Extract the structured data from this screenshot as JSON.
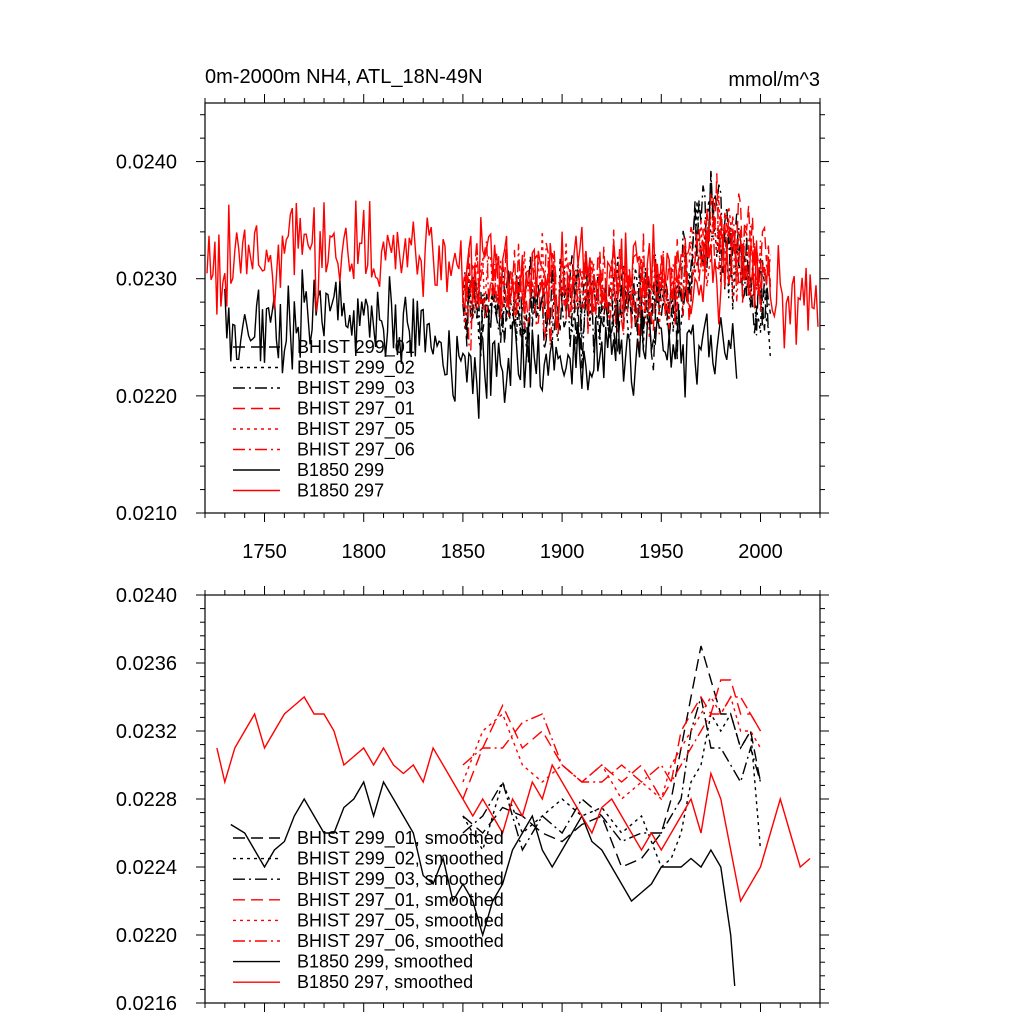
{
  "chart_data": [
    {
      "type": "line",
      "title": "0m-2000m NH4, ATL_18N-49N",
      "units": "mmol/m^3",
      "xlim": [
        1720,
        2030
      ],
      "ylim": [
        0.021,
        0.0245
      ],
      "x_ticks": [
        1750,
        1800,
        1850,
        1900,
        1950,
        2000
      ],
      "x_tick_labels": [
        "1750",
        "1800",
        "1850",
        "1900",
        "1950",
        "2000"
      ],
      "y_ticks": [
        0.021,
        0.022,
        0.023,
        0.024
      ],
      "y_tick_labels": [
        "0.0210",
        "0.0220",
        "0.0230",
        "0.0240"
      ],
      "legend_position": "bottom-left",
      "series": [
        {
          "name": "BHIST 299_01",
          "color": "#000000",
          "dash": "long",
          "x_start": 1850,
          "x_end": 2005,
          "mean": 0.02275,
          "amp": 0.0006,
          "trend": [
            [
              1850,
              0.0
            ],
            [
              1955,
              0.0
            ],
            [
              1975,
              0.0007
            ],
            [
              2005,
              0.0
            ]
          ]
        },
        {
          "name": "BHIST 299_02",
          "color": "#000000",
          "dash": "dot",
          "x_start": 1850,
          "x_end": 2005,
          "mean": 0.02275,
          "amp": 0.0006,
          "trend": [
            [
              1850,
              0.0
            ],
            [
              1955,
              0.0
            ],
            [
              1975,
              0.0006
            ],
            [
              2005,
              -0.0001
            ]
          ]
        },
        {
          "name": "BHIST 299_03",
          "color": "#000000",
          "dash": "dashdot",
          "x_start": 1850,
          "x_end": 2005,
          "mean": 0.02275,
          "amp": 0.0006,
          "trend": [
            [
              1850,
              0.0
            ],
            [
              1955,
              0.0
            ],
            [
              1975,
              0.0008
            ],
            [
              2005,
              0.0
            ]
          ]
        },
        {
          "name": "BHIST 297_01",
          "color": "#ff0000",
          "dash": "long",
          "x_start": 1850,
          "x_end": 2005,
          "mean": 0.0229,
          "amp": 0.0006,
          "trend": [
            [
              1850,
              0.0
            ],
            [
              1955,
              0.0
            ],
            [
              1978,
              0.0006
            ],
            [
              2005,
              0.0002
            ]
          ]
        },
        {
          "name": "BHIST 297_05",
          "color": "#ff0000",
          "dash": "dot",
          "x_start": 1850,
          "x_end": 2005,
          "mean": 0.0229,
          "amp": 0.0006,
          "trend": [
            [
              1850,
              0.0
            ],
            [
              1955,
              0.0
            ],
            [
              1978,
              0.0005
            ],
            [
              2005,
              0.0002
            ]
          ]
        },
        {
          "name": "BHIST 297_06",
          "color": "#ff0000",
          "dash": "dashdot",
          "x_start": 1850,
          "x_end": 2005,
          "mean": 0.0229,
          "amp": 0.0006,
          "trend": [
            [
              1850,
              0.0
            ],
            [
              1955,
              0.0
            ],
            [
              1978,
              0.0005
            ],
            [
              2005,
              0.0001
            ]
          ]
        },
        {
          "name": "B1850 299",
          "color": "#000000",
          "dash": "solid",
          "x_start": 1730,
          "x_end": 1988,
          "mean": 0.02255,
          "amp": 0.0006,
          "trend": [
            [
              1730,
              0.0
            ],
            [
              1790,
              0.0002
            ],
            [
              1860,
              -0.0003
            ],
            [
              1950,
              -0.0001
            ],
            [
              1988,
              -0.0002
            ]
          ]
        },
        {
          "name": "B1850 297",
          "color": "#ff0000",
          "dash": "solid",
          "x_start": 1721,
          "x_end": 2029,
          "mean": 0.023,
          "amp": 0.0006,
          "trend": [
            [
              1721,
              0.0001
            ],
            [
              1790,
              0.0003
            ],
            [
              1900,
              0.0
            ],
            [
              1980,
              0.0001
            ],
            [
              2029,
              -0.0002
            ]
          ]
        }
      ]
    },
    {
      "type": "line",
      "title": "",
      "xlim": [
        1720,
        2030
      ],
      "ylim": [
        0.0216,
        0.024
      ],
      "x_ticks": [
        1750,
        1800,
        1850,
        1900,
        1950,
        2000
      ],
      "y_ticks": [
        0.0216,
        0.022,
        0.0224,
        0.0228,
        0.0232,
        0.0236,
        0.024
      ],
      "y_tick_labels": [
        "0.0216",
        "0.0220",
        "0.0224",
        "0.0228",
        "0.0232",
        "0.0236",
        "0.0240"
      ],
      "legend_position": "bottom-left",
      "series": [
        {
          "name": "BHIST 299_01, smoothed",
          "color": "#000000",
          "dash": "long",
          "x": [
            1850,
            1860,
            1870,
            1880,
            1890,
            1900,
            1910,
            1920,
            1930,
            1940,
            1950,
            1955,
            1960,
            1965,
            1970,
            1975,
            1980,
            1985,
            1990,
            1995,
            2000
          ],
          "y": [
            0.0227,
            0.0226,
            0.02275,
            0.0227,
            0.0226,
            0.02255,
            0.02265,
            0.0227,
            0.0224,
            0.02245,
            0.0226,
            0.0228,
            0.0231,
            0.0234,
            0.0237,
            0.0235,
            0.0233,
            0.0233,
            0.0231,
            0.0232,
            0.0229
          ]
        },
        {
          "name": "BHIST 299_02, smoothed",
          "color": "#000000",
          "dash": "dot",
          "x": [
            1850,
            1860,
            1870,
            1880,
            1890,
            1900,
            1910,
            1920,
            1930,
            1940,
            1950,
            1955,
            1960,
            1965,
            1970,
            1975,
            1980,
            1985,
            1990,
            1995,
            2000
          ],
          "y": [
            0.0227,
            0.0225,
            0.0229,
            0.0226,
            0.0227,
            0.0228,
            0.0227,
            0.02275,
            0.0226,
            0.0227,
            0.0224,
            0.02245,
            0.0226,
            0.0229,
            0.023,
            0.0233,
            0.0232,
            0.0233,
            0.0231,
            0.0232,
            0.0225
          ]
        },
        {
          "name": "BHIST 299_03, smoothed",
          "color": "#000000",
          "dash": "dashdot",
          "x": [
            1850,
            1860,
            1870,
            1880,
            1890,
            1900,
            1910,
            1920,
            1930,
            1940,
            1950,
            1955,
            1960,
            1965,
            1970,
            1975,
            1980,
            1985,
            1990,
            1995,
            2000
          ],
          "y": [
            0.0226,
            0.0227,
            0.0229,
            0.0225,
            0.0227,
            0.0226,
            0.0228,
            0.0227,
            0.02255,
            0.0226,
            0.0226,
            0.0227,
            0.0228,
            0.0232,
            0.0234,
            0.0231,
            0.0231,
            0.023,
            0.0229,
            0.0231,
            0.0229
          ]
        },
        {
          "name": "BHIST 297_01, smoothed",
          "color": "#ff0000",
          "dash": "long",
          "x": [
            1850,
            1860,
            1870,
            1880,
            1890,
            1900,
            1910,
            1920,
            1930,
            1940,
            1950,
            1955,
            1960,
            1965,
            1970,
            1975,
            1980,
            1985,
            1990,
            1995,
            2000
          ],
          "y": [
            0.0228,
            0.0231,
            0.02335,
            0.0231,
            0.0232,
            0.023,
            0.0229,
            0.023,
            0.0229,
            0.023,
            0.0228,
            0.0229,
            0.0232,
            0.0233,
            0.0234,
            0.0233,
            0.0235,
            0.0235,
            0.0233,
            0.0233,
            0.0232
          ]
        },
        {
          "name": "BHIST 297_05, smoothed",
          "color": "#ff0000",
          "dash": "dot",
          "x": [
            1850,
            1860,
            1870,
            1880,
            1890,
            1900,
            1910,
            1920,
            1930,
            1940,
            1950,
            1955,
            1960,
            1965,
            1970,
            1975,
            1980,
            1985,
            1990,
            1995,
            2000
          ],
          "y": [
            0.0229,
            0.0232,
            0.0233,
            0.023,
            0.0229,
            0.023,
            0.0229,
            0.023,
            0.0228,
            0.0229,
            0.0228,
            0.023,
            0.0231,
            0.0232,
            0.0233,
            0.0234,
            0.0233,
            0.0234,
            0.0232,
            0.0232,
            0.0231
          ]
        },
        {
          "name": "BHIST 297_06, smoothed",
          "color": "#ff0000",
          "dash": "dashdot",
          "x": [
            1850,
            1860,
            1870,
            1880,
            1890,
            1900,
            1910,
            1920,
            1930,
            1940,
            1950,
            1955,
            1960,
            1965,
            1970,
            1975,
            1980,
            1985,
            1990,
            1995,
            2000
          ],
          "y": [
            0.023,
            0.0231,
            0.0231,
            0.02325,
            0.0233,
            0.023,
            0.0229,
            0.0229,
            0.023,
            0.0229,
            0.023,
            0.0229,
            0.023,
            0.0231,
            0.0232,
            0.0233,
            0.0233,
            0.0234,
            0.0234,
            0.0233,
            0.0232
          ]
        },
        {
          "name": "B1850 299, smoothed",
          "color": "#000000",
          "dash": "solid",
          "x": [
            1733,
            1740,
            1745,
            1750,
            1755,
            1760,
            1765,
            1770,
            1775,
            1780,
            1785,
            1790,
            1795,
            1800,
            1805,
            1810,
            1815,
            1820,
            1825,
            1830,
            1835,
            1840,
            1845,
            1850,
            1855,
            1860,
            1865,
            1870,
            1875,
            1880,
            1885,
            1890,
            1895,
            1900,
            1905,
            1910,
            1915,
            1920,
            1925,
            1930,
            1935,
            1940,
            1945,
            1950,
            1955,
            1960,
            1965,
            1970,
            1975,
            1980,
            1985,
            1987
          ],
          "y": [
            0.02265,
            0.0226,
            0.0225,
            0.0224,
            0.0225,
            0.02255,
            0.0227,
            0.0228,
            0.0227,
            0.0226,
            0.0226,
            0.02275,
            0.0228,
            0.0229,
            0.0227,
            0.0229,
            0.0228,
            0.0227,
            0.0226,
            0.02235,
            0.0223,
            0.02245,
            0.0222,
            0.0223,
            0.0222,
            0.022,
            0.0222,
            0.0223,
            0.0225,
            0.0226,
            0.0227,
            0.0225,
            0.0224,
            0.0225,
            0.0226,
            0.0227,
            0.02255,
            0.0225,
            0.0224,
            0.0223,
            0.0222,
            0.02225,
            0.0223,
            0.0224,
            0.0224,
            0.0224,
            0.02245,
            0.0224,
            0.0225,
            0.0224,
            0.022,
            0.0217
          ]
        },
        {
          "name": "B1850 297, smoothed",
          "color": "#ff0000",
          "dash": "solid",
          "x": [
            1726,
            1730,
            1735,
            1740,
            1745,
            1750,
            1755,
            1760,
            1765,
            1770,
            1775,
            1780,
            1785,
            1790,
            1795,
            1800,
            1805,
            1810,
            1815,
            1820,
            1825,
            1830,
            1835,
            1840,
            1845,
            1850,
            1855,
            1860,
            1865,
            1870,
            1875,
            1880,
            1885,
            1890,
            1895,
            1900,
            1905,
            1910,
            1915,
            1920,
            1925,
            1930,
            1935,
            1940,
            1945,
            1950,
            1955,
            1960,
            1965,
            1970,
            1975,
            1980,
            1985,
            1990,
            1995,
            2000,
            2005,
            2010,
            2015,
            2020,
            2025
          ],
          "y": [
            0.0231,
            0.0229,
            0.0231,
            0.0232,
            0.0233,
            0.0231,
            0.0232,
            0.0233,
            0.02335,
            0.0234,
            0.0233,
            0.0233,
            0.0232,
            0.023,
            0.02305,
            0.0231,
            0.023,
            0.0231,
            0.023,
            0.02295,
            0.023,
            0.0229,
            0.0231,
            0.023,
            0.0229,
            0.0228,
            0.0227,
            0.0228,
            0.0227,
            0.0226,
            0.0228,
            0.0227,
            0.0229,
            0.0228,
            0.023,
            0.0229,
            0.0228,
            0.0227,
            0.0226,
            0.02275,
            0.0228,
            0.0227,
            0.0226,
            0.0225,
            0.0226,
            0.0225,
            0.0226,
            0.0227,
            0.0228,
            0.0226,
            0.02295,
            0.0228,
            0.0225,
            0.0222,
            0.0223,
            0.0224,
            0.0226,
            0.0228,
            0.0226,
            0.0224,
            0.02245
          ]
        }
      ]
    }
  ]
}
